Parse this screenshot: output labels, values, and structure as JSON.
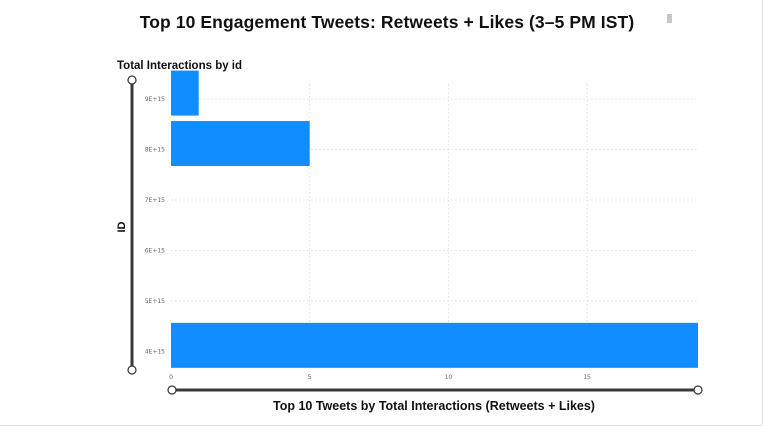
{
  "title": "Top 10 Engagement Tweets: Retweets + Likes (3–5 PM IST)",
  "subtitle": "Total Interactions by id",
  "chart_data": {
    "type": "bar",
    "orientation": "horizontal",
    "title": "Top 10 Engagement Tweets: Retweets + Likes (3–5 PM IST)",
    "subtitle": "Total Interactions by id",
    "xlabel": "Top 10 Tweets by Total Interactions (Retweets + Likes)",
    "ylabel": "ID",
    "xlim": [
      0,
      19
    ],
    "ylim": [
      3750000000000000.0,
      9300000000000000.0
    ],
    "x_ticks": [
      0,
      5,
      10,
      15
    ],
    "x_tick_labels": [
      "0",
      "5",
      "10",
      "15"
    ],
    "y_ticks": [
      4000000000000000.0,
      5000000000000000.0,
      6000000000000000.0,
      7000000000000000.0,
      8000000000000000.0,
      9000000000000000.0
    ],
    "y_tick_labels": [
      "4E+15",
      "5E+15",
      "6E+15",
      "7E+15",
      "8E+15",
      "9E+15"
    ],
    "bar_color": "#118DFF",
    "grid": "dotted",
    "bars": [
      {
        "id": 9120000000000000.0,
        "value": 1
      },
      {
        "id": 8120000000000000.0,
        "value": 5
      },
      {
        "id": 4120000000000000.0,
        "value": 19
      }
    ]
  }
}
